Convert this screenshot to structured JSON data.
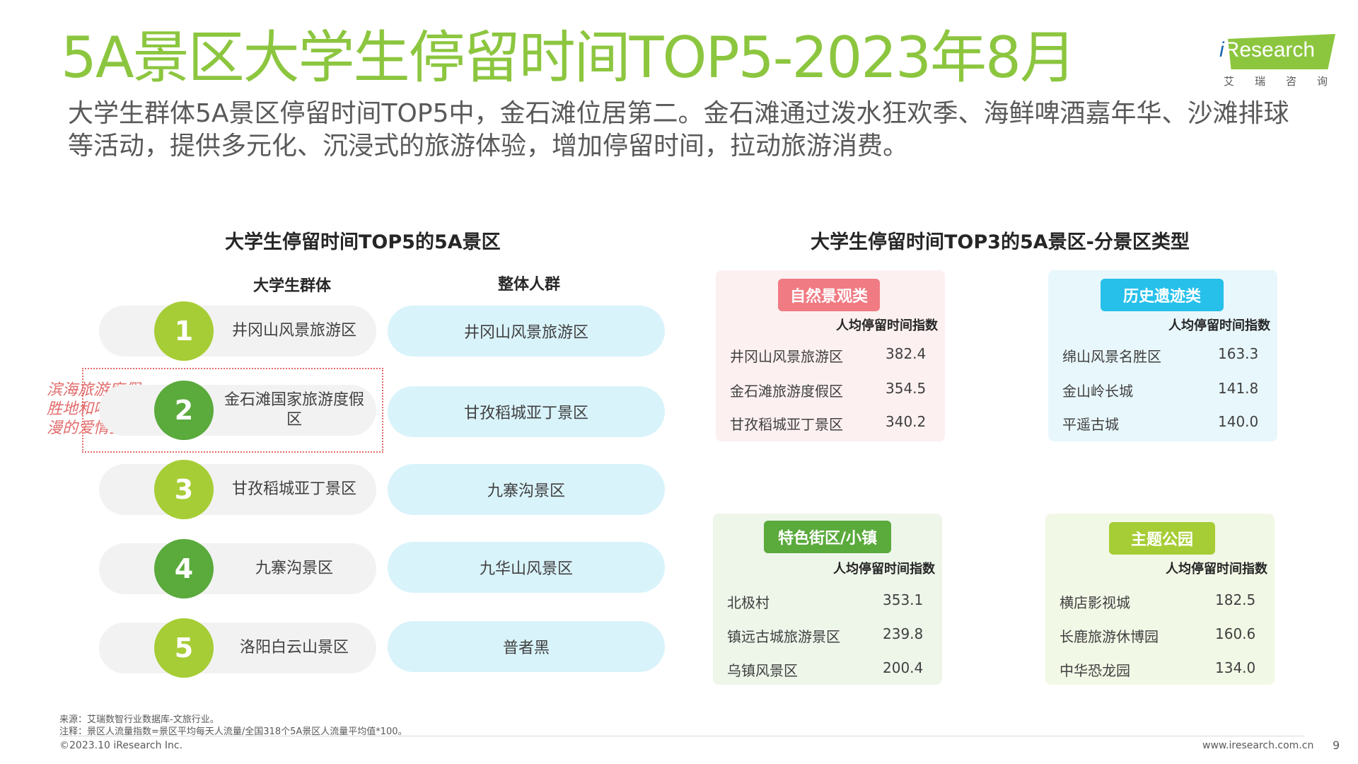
{
  "header": {
    "title": "5A景区大学生停留时间TOP5-2023年8月",
    "intro_line1": "大学生群体5A景区停留时间TOP5中，金石滩位居第二。金石滩通过泼水狂欢季、海鲜啤酒嘉年华、沙滩排球",
    "intro_line2": "等活动，提供多元化、沉浸式的旅游体验，增加停留时间，拉动旅游消费。"
  },
  "logo": {
    "i_letter": "i",
    "research": "Research",
    "cn": "艾瑞咨询"
  },
  "ranking": {
    "title": "大学生停留时间TOP5的5A景区",
    "student_header": "大学生群体",
    "overall_header": "整体人群",
    "rows": [
      {
        "rank": "1",
        "student": "井冈山风景旅游区",
        "overall": "井冈山风景旅游区"
      },
      {
        "rank": "2",
        "student": "金石滩国家旅游度假区",
        "overall": "甘孜稻城亚丁景区"
      },
      {
        "rank": "3",
        "student": "甘孜稻城亚丁景区",
        "overall": "九寨沟景区"
      },
      {
        "rank": "4",
        "student": "九寨沟景区",
        "overall": "九华山风景区"
      },
      {
        "rank": "5",
        "student": "洛阳白云山景区",
        "overall": "普者黑"
      }
    ],
    "annotation": "滨海旅游度假胜地和唯美浪漫的爱情圣地"
  },
  "categories": {
    "title": "大学生停留时间TOP3的5A景区-分景区类型",
    "index_header": "人均停留时间指数",
    "cards": [
      {
        "name": "自然景观类",
        "items": [
          {
            "name": "井冈山风景旅游区",
            "value": "382.4"
          },
          {
            "name": "金石滩旅游度假区",
            "value": "354.5"
          },
          {
            "name": "甘孜稻城亚丁景区",
            "value": "340.2"
          }
        ]
      },
      {
        "name": "历史遗迹类",
        "items": [
          {
            "name": "绵山风景名胜区",
            "value": "163.3"
          },
          {
            "name": "金山岭长城",
            "value": "141.8"
          },
          {
            "name": "平遥古城",
            "value": "140.0"
          }
        ]
      },
      {
        "name": "特色街区/小镇",
        "items": [
          {
            "name": "北极村",
            "value": "353.1"
          },
          {
            "name": "镇远古城旅游景区",
            "value": "239.8"
          },
          {
            "name": "乌镇风景区",
            "value": "200.4"
          }
        ]
      },
      {
        "name": "主题公园",
        "items": [
          {
            "name": "横店影视城",
            "value": "182.5"
          },
          {
            "name": "长鹿旅游休博园",
            "value": "160.6"
          },
          {
            "name": "中华恐龙园",
            "value": "134.0"
          }
        ]
      }
    ]
  },
  "footer": {
    "source": "来源：艾瑞数智行业数据库-文旅行业。",
    "note": "注释：景区人流量指数=景区平均每天人流量/全国318个5A景区人流量平均值*100。",
    "copyright": "©2023.10  iResearch Inc.",
    "website": "www.iresearch.com.cn",
    "page_number": "9"
  },
  "colors": {
    "brand_green": "#8cc63f",
    "rank_light_green": "#a6cd35",
    "rank_dark_green": "#5aaa3c",
    "annotation_red": "#e26b6b",
    "card_natural_bg": "#fdf0f1",
    "card_natural_badge": "#f07b83",
    "card_history_bg": "#e8f7fc",
    "card_history_badge": "#26c0ea",
    "card_street_bg": "#eef6ea",
    "card_street_badge": "#5aaa3c",
    "card_theme_bg": "#f2f8e6",
    "card_theme_badge": "#a6cd35"
  }
}
